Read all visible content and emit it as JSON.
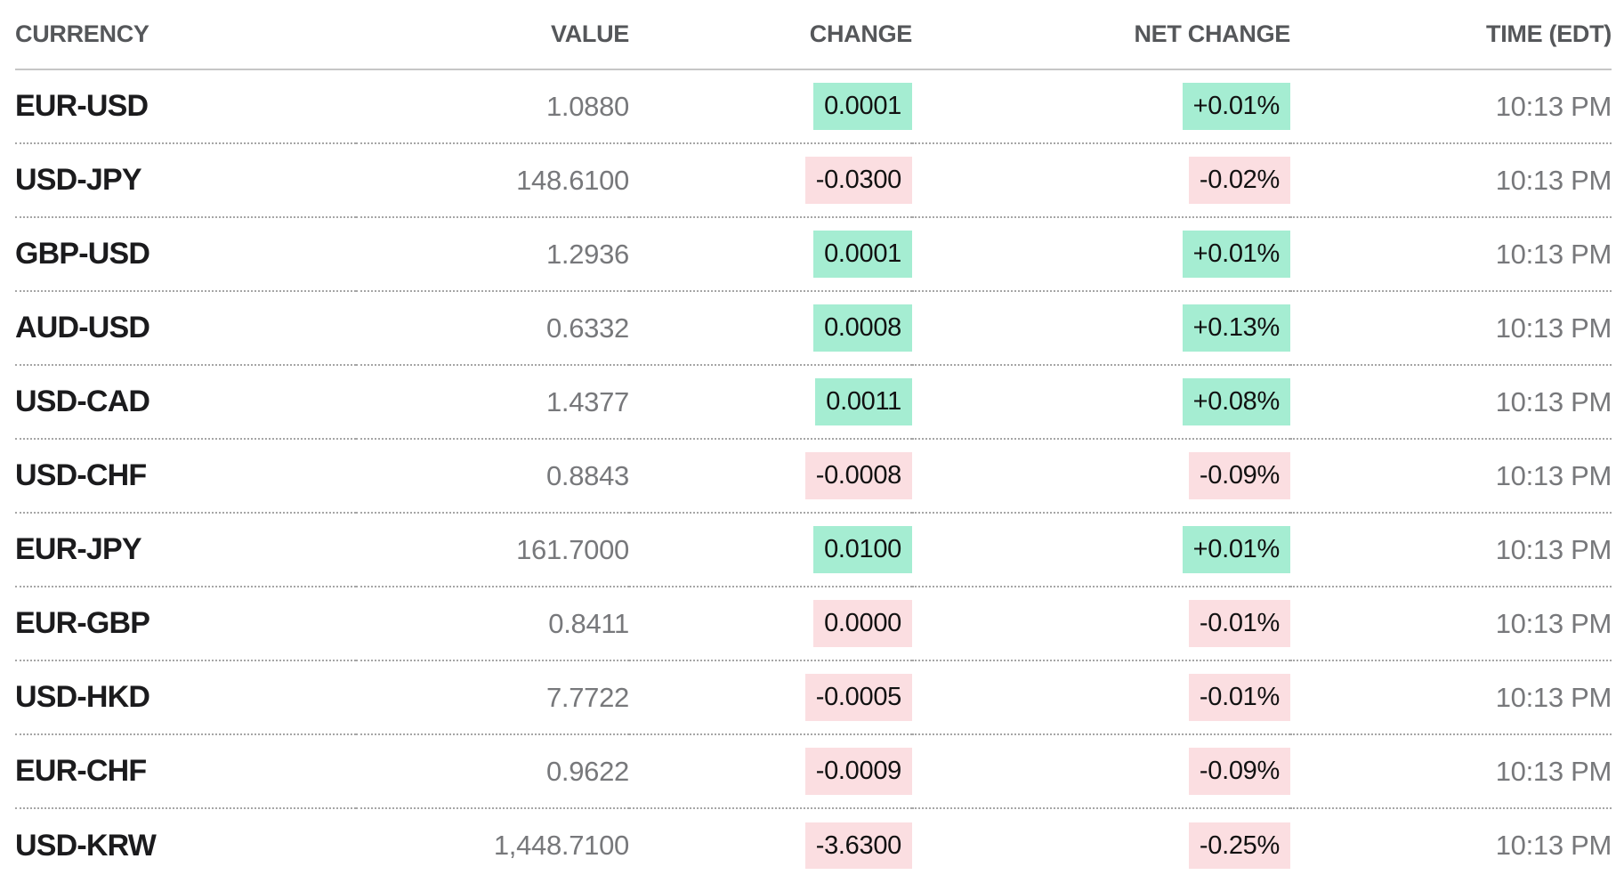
{
  "table": {
    "columns": [
      "CURRENCY",
      "VALUE",
      "CHANGE",
      "NET CHANGE",
      "TIME (EDT)"
    ],
    "rows": [
      {
        "currency": "EUR-USD",
        "value": "1.0880",
        "change": "0.0001",
        "net_change": "+0.01%",
        "time": "10:13 PM",
        "direction": "up"
      },
      {
        "currency": "USD-JPY",
        "value": "148.6100",
        "change": "-0.0300",
        "net_change": "-0.02%",
        "time": "10:13 PM",
        "direction": "down"
      },
      {
        "currency": "GBP-USD",
        "value": "1.2936",
        "change": "0.0001",
        "net_change": "+0.01%",
        "time": "10:13 PM",
        "direction": "up"
      },
      {
        "currency": "AUD-USD",
        "value": "0.6332",
        "change": "0.0008",
        "net_change": "+0.13%",
        "time": "10:13 PM",
        "direction": "up"
      },
      {
        "currency": "USD-CAD",
        "value": "1.4377",
        "change": "0.0011",
        "net_change": "+0.08%",
        "time": "10:13 PM",
        "direction": "up"
      },
      {
        "currency": "USD-CHF",
        "value": "0.8843",
        "change": "-0.0008",
        "net_change": "-0.09%",
        "time": "10:13 PM",
        "direction": "down"
      },
      {
        "currency": "EUR-JPY",
        "value": "161.7000",
        "change": "0.0100",
        "net_change": "+0.01%",
        "time": "10:13 PM",
        "direction": "up"
      },
      {
        "currency": "EUR-GBP",
        "value": "0.8411",
        "change": "0.0000",
        "net_change": "-0.01%",
        "time": "10:13 PM",
        "direction": "down"
      },
      {
        "currency": "USD-HKD",
        "value": "7.7722",
        "change": "-0.0005",
        "net_change": "-0.01%",
        "time": "10:13 PM",
        "direction": "down"
      },
      {
        "currency": "EUR-CHF",
        "value": "0.9622",
        "change": "-0.0009",
        "net_change": "-0.09%",
        "time": "10:13 PM",
        "direction": "down"
      },
      {
        "currency": "USD-KRW",
        "value": "1,448.7100",
        "change": "-3.6300",
        "net_change": "-0.25%",
        "time": "10:13 PM",
        "direction": "down"
      }
    ]
  },
  "colors": {
    "positive_chip_bg": "#a5edd2",
    "negative_chip_bg": "#fbdee1",
    "pair_text": "#1b1b1d",
    "muted_text": "#77787b",
    "header_text": "#55575a",
    "header_divider": "#c6c6c6",
    "row_divider": "#a6a6a6",
    "chip_text": "#111111",
    "background": "#ffffff"
  }
}
